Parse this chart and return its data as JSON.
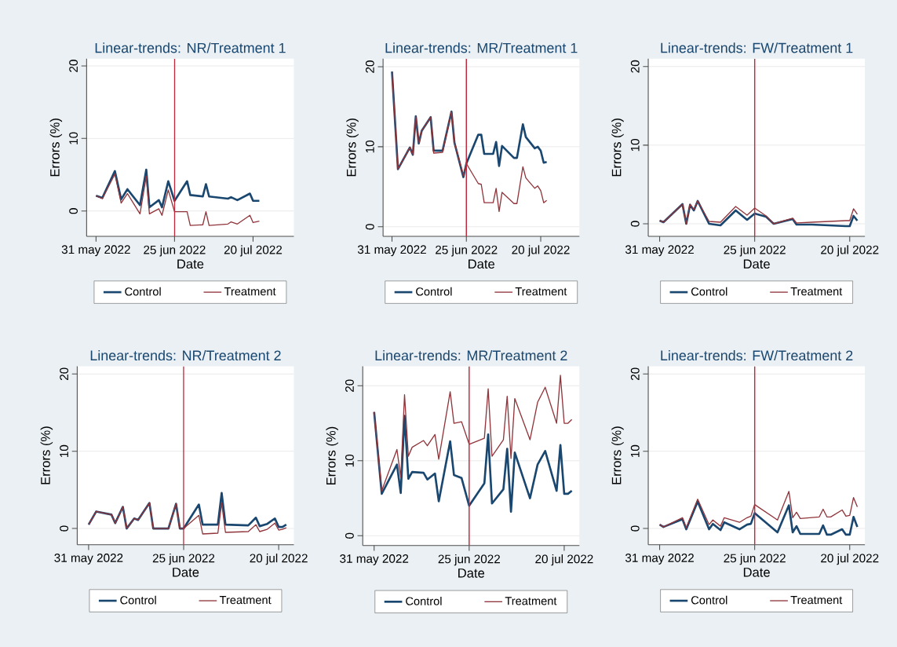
{
  "chart_data": [
    {
      "type": "line",
      "title": "Linear-trends: NR/Treatment 1",
      "xlabel": "Date",
      "ylabel": "Errors (%)",
      "grid": "y",
      "legend": "bottom",
      "xlim": [
        "2022-05-28",
        "2022-08-02"
      ],
      "ylim": [
        -3.5,
        21
      ],
      "xticks": [
        {
          "value": "2022-05-31",
          "label": "31 may 2022"
        },
        {
          "value": "2022-06-25",
          "label": "25 jun 2022"
        },
        {
          "value": "2022-07-20",
          "label": "20 jul 2022"
        }
      ],
      "yticks": [
        0,
        10,
        20
      ],
      "ref_lines": [
        {
          "axis": "x",
          "value": "2022-06-25",
          "color": "#c0283c"
        }
      ],
      "x": [
        "2022-05-31",
        "2022-06-02",
        "2022-06-06",
        "2022-06-08",
        "2022-06-10",
        "2022-06-14",
        "2022-06-16",
        "2022-06-17",
        "2022-06-20",
        "2022-06-21",
        "2022-06-23",
        "2022-06-25",
        "2022-06-29",
        "2022-06-30",
        "2022-07-04",
        "2022-07-05",
        "2022-07-06",
        "2022-07-12",
        "2022-07-13",
        "2022-07-15",
        "2022-07-19",
        "2022-07-20",
        "2022-07-22"
      ],
      "series": [
        {
          "name": "Control",
          "color": "#1a476f",
          "values": [
            2.1,
            1.8,
            5.5,
            1.6,
            3.0,
            0.8,
            5.7,
            0.5,
            1.5,
            0.5,
            4.1,
            1.4,
            4.1,
            2.2,
            2.0,
            3.7,
            2.0,
            1.7,
            1.9,
            1.5,
            2.4,
            1.4,
            1.4
          ]
        },
        {
          "name": "Treatment",
          "color": "#90353b",
          "values": [
            2.1,
            1.7,
            5.1,
            1.1,
            2.4,
            -0.4,
            4.8,
            -0.4,
            0.3,
            -0.6,
            2.9,
            -0.1,
            -0.1,
            -2.0,
            -1.9,
            -0.1,
            -2.0,
            -1.8,
            -1.5,
            -1.8,
            -0.6,
            -1.6,
            -1.4
          ]
        }
      ]
    },
    {
      "type": "line",
      "title": "Linear-trends: MR/Treatment 1",
      "xlabel": "Date",
      "ylabel": "Errors (%)",
      "grid": "y",
      "legend": "bottom",
      "xlim": [
        "2022-05-28",
        "2022-08-02"
      ],
      "ylim": [
        -1.2,
        21
      ],
      "xticks": [
        {
          "value": "2022-05-31",
          "label": "31 may 2022"
        },
        {
          "value": "2022-06-25",
          "label": "25 jun 2022"
        },
        {
          "value": "2022-07-20",
          "label": "20 jul 2022"
        }
      ],
      "yticks": [
        0,
        10,
        20
      ],
      "ref_lines": [
        {
          "axis": "x",
          "value": "2022-06-25",
          "color": "#c0283c"
        }
      ],
      "x": [
        "2022-05-31",
        "2022-06-02",
        "2022-06-06",
        "2022-06-07",
        "2022-06-08",
        "2022-06-09",
        "2022-06-10",
        "2022-06-13",
        "2022-06-14",
        "2022-06-17",
        "2022-06-20",
        "2022-06-21",
        "2022-06-24",
        "2022-06-25",
        "2022-06-29",
        "2022-06-30",
        "2022-07-01",
        "2022-07-04",
        "2022-07-05",
        "2022-07-06",
        "2022-07-07",
        "2022-07-11",
        "2022-07-12",
        "2022-07-14",
        "2022-07-15",
        "2022-07-18",
        "2022-07-19",
        "2022-07-20",
        "2022-07-21",
        "2022-07-22"
      ],
      "series": [
        {
          "name": "Control",
          "color": "#1a476f",
          "values": [
            19.4,
            7.2,
            9.9,
            9.0,
            13.8,
            10.4,
            12.0,
            13.7,
            9.5,
            9.5,
            14.4,
            10.5,
            6.2,
            7.9,
            11.5,
            11.5,
            9.1,
            9.1,
            10.6,
            7.6,
            10.1,
            8.6,
            8.6,
            12.8,
            11.2,
            9.8,
            10.0,
            9.5,
            8.0,
            8.1
          ]
        },
        {
          "name": "Treatment",
          "color": "#90353b",
          "values": [
            19.4,
            7.2,
            9.9,
            9.0,
            13.8,
            10.4,
            12.0,
            13.7,
            9.2,
            9.3,
            14.4,
            10.5,
            6.4,
            7.9,
            5.4,
            5.3,
            3.0,
            3.0,
            4.8,
            1.9,
            4.3,
            2.9,
            2.9,
            7.5,
            6.1,
            4.8,
            5.1,
            4.5,
            3.0,
            3.3
          ]
        }
      ]
    },
    {
      "type": "line",
      "title": "Linear-trends: FW/Treatment 1",
      "xlabel": "Date",
      "ylabel": "Errors (%)",
      "grid": "y",
      "legend": "bottom",
      "xlim": [
        "2022-05-28",
        "2022-07-24"
      ],
      "ylim": [
        -1.6,
        21
      ],
      "xticks": [
        {
          "value": "2022-05-31",
          "label": "31 may 2022"
        },
        {
          "value": "2022-06-25",
          "label": "25 jun 2022"
        },
        {
          "value": "2022-07-20",
          "label": "20 jul 2022"
        }
      ],
      "yticks": [
        0,
        10,
        20
      ],
      "ref_lines": [
        {
          "axis": "x",
          "value": "2022-06-25",
          "color": "#c0283c"
        }
      ],
      "x": [
        "2022-05-31",
        "2022-06-01",
        "2022-06-06",
        "2022-06-07",
        "2022-06-08",
        "2022-06-09",
        "2022-06-10",
        "2022-06-13",
        "2022-06-16",
        "2022-06-20",
        "2022-06-23",
        "2022-06-25",
        "2022-06-28",
        "2022-06-30",
        "2022-07-05",
        "2022-07-06",
        "2022-07-10",
        "2022-07-19",
        "2022-07-20",
        "2022-07-21",
        "2022-07-22"
      ],
      "series": [
        {
          "name": "Control",
          "color": "#1a476f",
          "values": [
            0.4,
            0.2,
            2.5,
            0.0,
            2.4,
            1.7,
            2.9,
            0.0,
            -0.2,
            1.7,
            0.5,
            1.3,
            0.9,
            0.0,
            0.6,
            -0.1,
            -0.1,
            -0.3,
            -0.3,
            1.0,
            0.4
          ]
        },
        {
          "name": "Treatment",
          "color": "#90353b",
          "values": [
            0.4,
            0.2,
            2.5,
            0.0,
            2.5,
            1.8,
            2.9,
            0.3,
            0.2,
            2.2,
            1.1,
            2.0,
            1.0,
            0.0,
            0.7,
            0.1,
            0.2,
            0.4,
            0.4,
            1.9,
            1.2
          ]
        }
      ]
    },
    {
      "type": "line",
      "title": "Linear-trends: NR/Treatment 2",
      "xlabel": "Date",
      "ylabel": "Errors (%)",
      "grid": "y",
      "legend": "bottom",
      "xlim": [
        "2022-05-28",
        "2022-07-24"
      ],
      "ylim": [
        -2.1,
        21
      ],
      "xticks": [
        {
          "value": "2022-05-31",
          "label": "31 may 2022"
        },
        {
          "value": "2022-06-25",
          "label": "25 jun 2022"
        },
        {
          "value": "2022-07-20",
          "label": "20 jul 2022"
        }
      ],
      "yticks": [
        0,
        10,
        20
      ],
      "ref_lines": [
        {
          "axis": "x",
          "value": "2022-06-25",
          "color": "#c0283c"
        }
      ],
      "x": [
        "2022-05-31",
        "2022-06-02",
        "2022-06-06",
        "2022-06-07",
        "2022-06-09",
        "2022-06-10",
        "2022-06-12",
        "2022-06-13",
        "2022-06-16",
        "2022-06-17",
        "2022-06-21",
        "2022-06-23",
        "2022-06-24",
        "2022-06-25",
        "2022-06-29",
        "2022-06-30",
        "2022-07-04",
        "2022-07-05",
        "2022-07-06",
        "2022-07-12",
        "2022-07-14",
        "2022-07-15",
        "2022-07-17",
        "2022-07-19",
        "2022-07-20",
        "2022-07-21",
        "2022-07-22"
      ],
      "series": [
        {
          "name": "Control",
          "color": "#1a476f",
          "values": [
            0.5,
            2.2,
            1.8,
            0.7,
            2.8,
            0.0,
            1.3,
            1.1,
            3.3,
            0.0,
            0.0,
            3.2,
            0.0,
            0.0,
            3.1,
            0.5,
            0.5,
            4.6,
            0.5,
            0.4,
            1.4,
            0.3,
            0.6,
            1.3,
            0.2,
            0.2,
            0.5
          ]
        },
        {
          "name": "Treatment",
          "color": "#90353b",
          "values": [
            0.5,
            2.2,
            1.8,
            0.7,
            2.8,
            0.0,
            1.3,
            1.1,
            3.3,
            0.0,
            0.0,
            3.2,
            0.0,
            0.0,
            1.7,
            -0.7,
            -0.6,
            3.3,
            -0.5,
            -0.4,
            0.5,
            -0.4,
            -0.1,
            0.7,
            -0.2,
            -0.1,
            0.1
          ]
        }
      ]
    },
    {
      "type": "line",
      "title": "Linear-trends: MR/Treatment 2",
      "xlabel": "Date",
      "ylabel": "Errors (%)",
      "grid": "y",
      "legend": "bottom",
      "xlim": [
        "2022-05-28",
        "2022-07-24"
      ],
      "ylim": [
        -1.3,
        22.6
      ],
      "xticks": [
        {
          "value": "2022-05-31",
          "label": "31 may 2022"
        },
        {
          "value": "2022-06-25",
          "label": "25 jun 2022"
        },
        {
          "value": "2022-07-20",
          "label": "20 jul 2022"
        }
      ],
      "yticks": [
        0,
        10,
        20
      ],
      "ref_lines": [
        {
          "axis": "x",
          "value": "2022-06-25",
          "color": "#c0283c"
        }
      ],
      "x": [
        "2022-05-31",
        "2022-06-02",
        "2022-06-06",
        "2022-06-07",
        "2022-06-08",
        "2022-06-09",
        "2022-06-10",
        "2022-06-13",
        "2022-06-14",
        "2022-06-16",
        "2022-06-17",
        "2022-06-20",
        "2022-06-21",
        "2022-06-23",
        "2022-06-25",
        "2022-06-29",
        "2022-06-30",
        "2022-07-01",
        "2022-07-04",
        "2022-07-05",
        "2022-07-06",
        "2022-07-07",
        "2022-07-11",
        "2022-07-13",
        "2022-07-15",
        "2022-07-18",
        "2022-07-19",
        "2022-07-20",
        "2022-07-21",
        "2022-07-22"
      ],
      "series": [
        {
          "name": "Control",
          "color": "#1a476f",
          "values": [
            16.5,
            5.6,
            9.5,
            5.7,
            16.0,
            7.6,
            8.5,
            8.4,
            7.5,
            8.3,
            4.6,
            12.6,
            8.1,
            7.7,
            4.0,
            7.0,
            13.5,
            4.3,
            6.2,
            11.6,
            3.2,
            11.1,
            5.0,
            9.5,
            11.3,
            6.0,
            12.1,
            5.6,
            5.6,
            6.0
          ]
        },
        {
          "name": "Treatment",
          "color": "#90353b",
          "values": [
            16.5,
            6.0,
            11.5,
            7.8,
            18.8,
            10.6,
            11.8,
            12.7,
            12.0,
            13.5,
            10.2,
            19.2,
            15.0,
            15.2,
            12.2,
            13.0,
            19.6,
            10.6,
            12.8,
            18.6,
            10.3,
            18.3,
            12.8,
            17.8,
            19.8,
            15.0,
            21.4,
            15.0,
            15.0,
            15.5
          ]
        }
      ]
    },
    {
      "type": "line",
      "title": "Linear-trends: FW/Treatment 2",
      "xlabel": "Date",
      "ylabel": "Errors (%)",
      "grid": "y",
      "legend": "bottom",
      "xlim": [
        "2022-05-28",
        "2022-07-24"
      ],
      "ylim": [
        -2.1,
        21
      ],
      "xticks": [
        {
          "value": "2022-05-31",
          "label": "31 may 2022"
        },
        {
          "value": "2022-06-25",
          "label": "25 jun 2022"
        },
        {
          "value": "2022-07-20",
          "label": "20 jul 2022"
        }
      ],
      "yticks": [
        0,
        10,
        20
      ],
      "ref_lines": [
        {
          "axis": "x",
          "value": "2022-06-25",
          "color": "#c0283c"
        }
      ],
      "x": [
        "2022-05-31",
        "2022-06-01",
        "2022-06-06",
        "2022-06-07",
        "2022-06-10",
        "2022-06-13",
        "2022-06-14",
        "2022-06-16",
        "2022-06-17",
        "2022-06-21",
        "2022-06-23",
        "2022-06-24",
        "2022-06-25",
        "2022-07-01",
        "2022-07-04",
        "2022-07-05",
        "2022-07-06",
        "2022-07-07",
        "2022-07-12",
        "2022-07-13",
        "2022-07-14",
        "2022-07-15",
        "2022-07-18",
        "2022-07-19",
        "2022-07-20",
        "2022-07-21",
        "2022-07-22"
      ],
      "series": [
        {
          "name": "Control",
          "color": "#1a476f",
          "values": [
            0.5,
            0.2,
            1.2,
            -0.1,
            3.5,
            -0.1,
            0.6,
            -0.2,
            0.8,
            -0.1,
            0.5,
            0.6,
            2.0,
            -0.5,
            3.0,
            -0.5,
            0.3,
            -0.7,
            -0.7,
            0.4,
            -0.8,
            -0.8,
            -0.1,
            -0.8,
            -0.8,
            1.5,
            0.2
          ]
        },
        {
          "name": "Treatment",
          "color": "#90353b",
          "values": [
            0.5,
            0.2,
            1.4,
            0.1,
            3.8,
            0.5,
            1.1,
            0.3,
            1.4,
            0.8,
            1.4,
            1.6,
            3.1,
            1.1,
            4.8,
            1.4,
            2.1,
            1.3,
            1.5,
            2.5,
            1.5,
            1.5,
            2.4,
            1.6,
            1.7,
            4.0,
            2.8
          ]
        }
      ]
    }
  ]
}
